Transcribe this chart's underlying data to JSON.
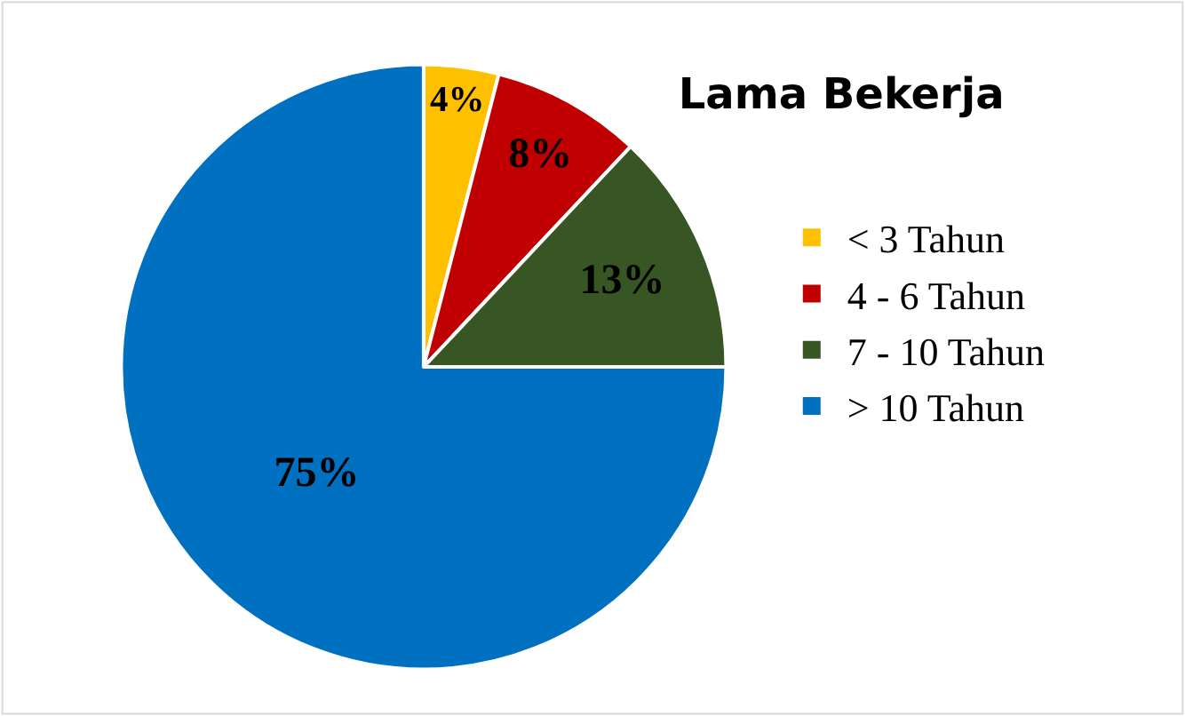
{
  "chart_data": {
    "type": "pie",
    "title": "Lama Bekerja",
    "categories": [
      "< 3 Tahun",
      "4 - 6 Tahun",
      "7 - 10 Tahun",
      "> 10 Tahun"
    ],
    "values": [
      4,
      8,
      13,
      75
    ],
    "colors": [
      "#ffc000",
      "#c00000",
      "#375623",
      "#0070c0"
    ],
    "value_labels": [
      "4%",
      "8%",
      "13%",
      "75%"
    ],
    "legend": "right"
  }
}
